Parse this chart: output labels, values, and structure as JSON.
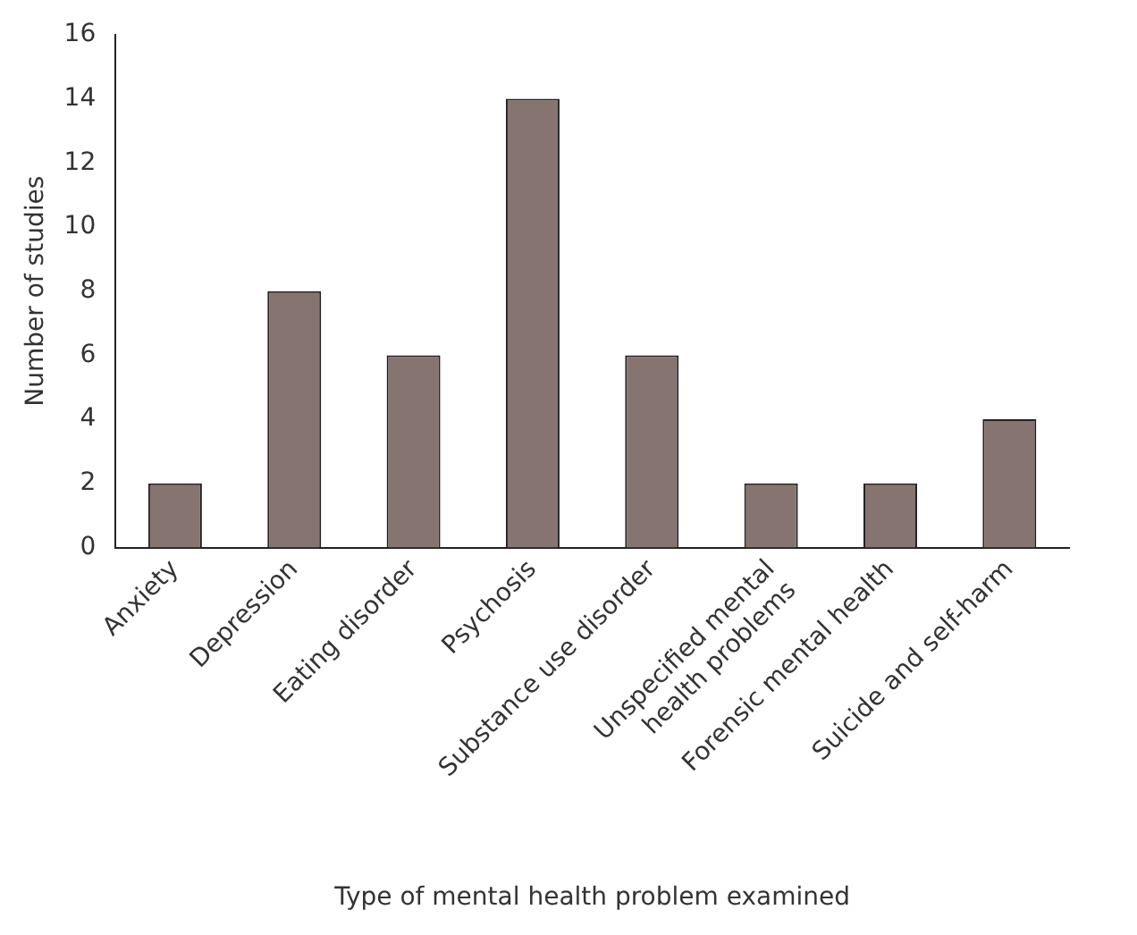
{
  "chart_data": {
    "type": "bar",
    "xlabel": "Type of mental health problem examined",
    "ylabel": "Number of studies",
    "categories": [
      "Anxiety",
      "Depression",
      "Eating disorder",
      "Psychosis",
      "Substance use disorder",
      "Unspecified mental health problems",
      "Forensic mental health",
      "Suicide and self-harm"
    ],
    "values": [
      2,
      8,
      6,
      14,
      6,
      2,
      2,
      4
    ],
    "color": "#857470",
    "ylim": [
      0,
      16
    ],
    "yticks": [
      0,
      2,
      4,
      6,
      8,
      10,
      12,
      14,
      16
    ],
    "grid": false,
    "legend": false
  }
}
